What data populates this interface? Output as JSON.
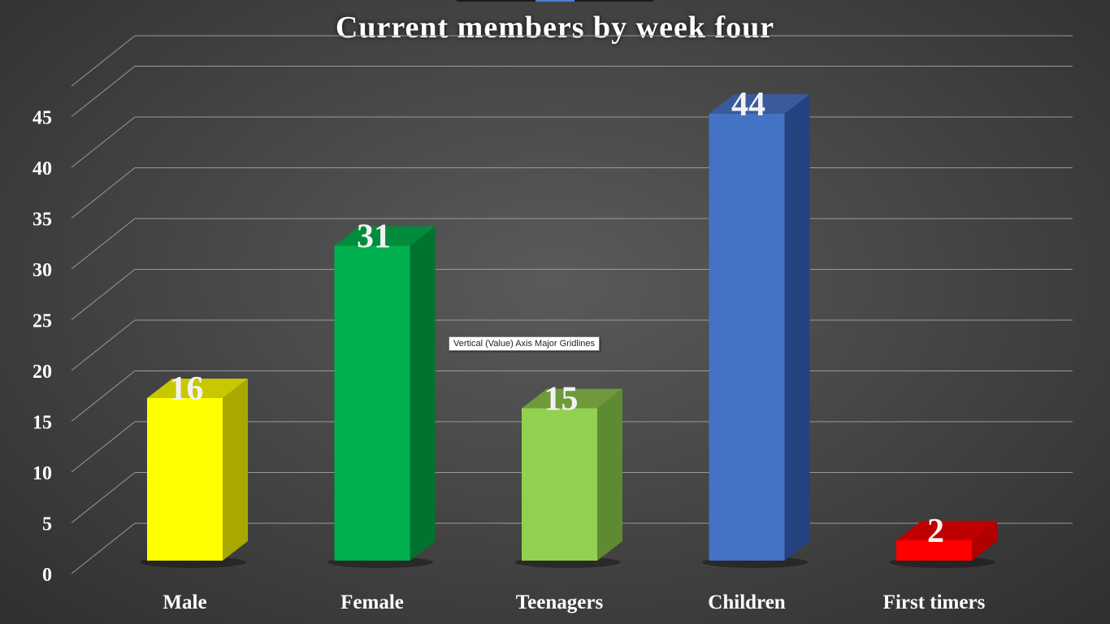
{
  "chart_data": {
    "type": "bar",
    "title": "Current members by week four",
    "categories": [
      "Male",
      "Female",
      "Teenagers",
      "Children",
      "First timers"
    ],
    "values": [
      16,
      31,
      15,
      44,
      2
    ],
    "data_labels": [
      "16",
      "31",
      "15",
      "44",
      "2"
    ],
    "xlabel": "",
    "ylabel": "",
    "ylim": [
      0,
      48
    ],
    "yticks": [
      0,
      5,
      10,
      15,
      20,
      25,
      30,
      35,
      40,
      45
    ],
    "ytick_labels": [
      "0",
      "5",
      "10",
      "15",
      "20",
      "25",
      "30",
      "35",
      "40",
      "45"
    ],
    "grid": true,
    "legend": "none",
    "style": "3d-column",
    "colors": [
      "#ffff00",
      "#00b04f",
      "#92d050",
      "#4472c4",
      "#ff0000"
    ],
    "side_colors": [
      "#a8a800",
      "#00742f",
      "#5e8a32",
      "#23427f",
      "#b00000"
    ],
    "top_colors": [
      "#c8c800",
      "#008c3c",
      "#6e9a3c",
      "#3a5a9c",
      "#c00000"
    ]
  },
  "tooltip": {
    "text": "Vertical (Value) Axis Major Gridlines"
  }
}
